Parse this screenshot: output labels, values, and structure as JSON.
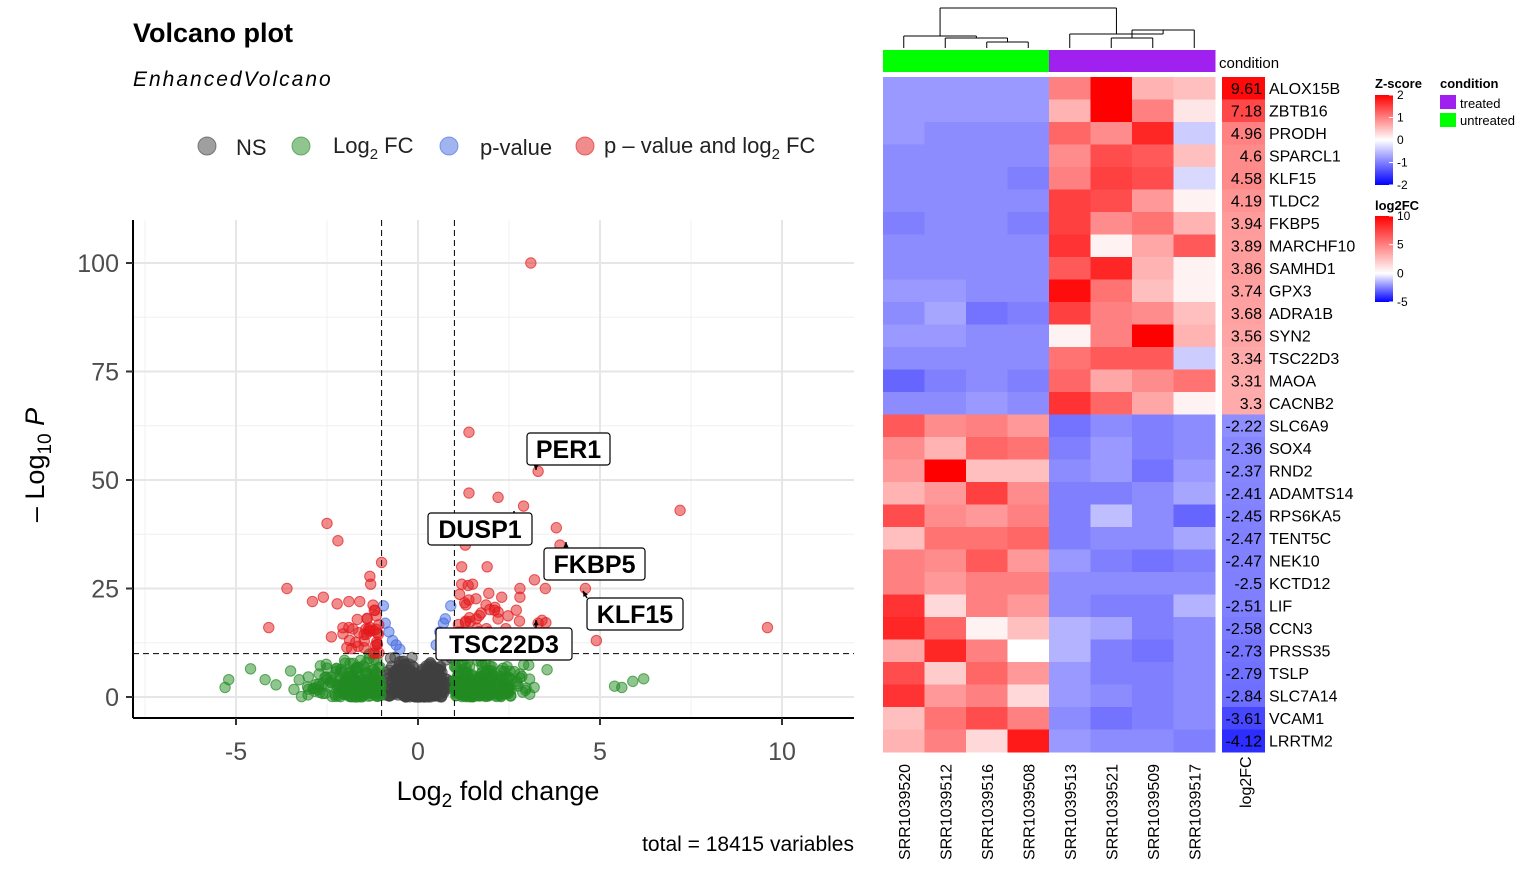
{
  "chart_data": [
    {
      "type": "scatter",
      "title": "Volcano plot",
      "subtitle": "EnhancedVolcano",
      "xlabel": "Log2 fold change",
      "ylabel": "-Log10 P",
      "caption": "total = 18415 variables",
      "xlim": [
        -7.8,
        12
      ],
      "ylim": [
        -5,
        110
      ],
      "x_ticks": [
        "-5",
        "0",
        "5",
        "10"
      ],
      "y_ticks": [
        "0",
        "25",
        "50",
        "75",
        "100"
      ],
      "x_tick_values": [
        -5,
        0,
        5,
        10
      ],
      "y_tick_values": [
        0,
        25,
        50,
        75,
        100
      ],
      "fc_cutoff": 1,
      "p_cutoff_log10": 10,
      "grid": true,
      "legend_position": "top",
      "legend": [
        {
          "name": "NS",
          "color": "#404040"
        },
        {
          "name": "Log2 FC",
          "color": "#228b22"
        },
        {
          "name": "p-value",
          "color": "#4169e1"
        },
        {
          "name": "p - value and log2 FC",
          "color": "#e31a1c"
        }
      ],
      "significant_points": [
        [
          3.1,
          100
        ],
        [
          1.4,
          61
        ],
        [
          7.2,
          43
        ],
        [
          9.6,
          16
        ],
        [
          1.4,
          47
        ],
        [
          2.2,
          46
        ],
        [
          2.9,
          44
        ],
        [
          3.3,
          52
        ],
        [
          3.9,
          35
        ],
        [
          4.6,
          25
        ],
        [
          3.8,
          39
        ],
        [
          2.8,
          23
        ],
        [
          3.2,
          27
        ],
        [
          4.9,
          13
        ],
        [
          -2.5,
          40
        ],
        [
          -2.2,
          36
        ],
        [
          -3.6,
          25
        ],
        [
          -2.6,
          23
        ],
        [
          -1,
          31
        ],
        [
          -1.3,
          26
        ],
        [
          -4.1,
          16
        ],
        [
          1.3,
          35
        ],
        [
          1.2,
          30
        ],
        [
          1.2,
          26
        ],
        [
          1.5,
          26
        ],
        [
          1.9,
          30
        ],
        [
          2.3,
          23
        ],
        [
          2.8,
          25
        ],
        [
          3.5,
          25
        ],
        [
          2.7,
          20
        ],
        [
          2.1,
          20
        ],
        [
          3.3,
          17
        ],
        [
          2.7,
          14
        ],
        [
          1.6,
          18
        ],
        [
          2.2,
          18
        ],
        [
          -1.2,
          20
        ],
        [
          -1.4,
          18
        ],
        [
          -2.9,
          22
        ],
        [
          -1.9,
          16
        ],
        [
          -1.6,
          22
        ],
        [
          -1.9,
          22
        ]
      ],
      "labels": [
        {
          "gene": "PER1",
          "x": 3.3,
          "y": 52
        },
        {
          "gene": "DUSP1",
          "x": 2.7,
          "y": 43
        },
        {
          "gene": "FKBP5",
          "x": 4.3,
          "y": 35
        },
        {
          "gene": "KLF15",
          "x": 4.6,
          "y": 25
        },
        {
          "gene": "TSC22D3",
          "x": 3.2,
          "y": 17
        }
      ]
    },
    {
      "type": "heatmap",
      "samples": [
        "SRR1039520",
        "SRR1039512",
        "SRR1039516",
        "SRR1039508",
        "SRR1039513",
        "SRR1039521",
        "SRR1039509",
        "SRR1039517"
      ],
      "condition": [
        "untreated",
        "untreated",
        "untreated",
        "untreated",
        "treated",
        "treated",
        "treated",
        "treated"
      ],
      "condition_label": "condition",
      "condition_colors": {
        "treated": "#a020f0",
        "untreated": "#00ff00"
      },
      "genes": [
        "ALOX15B",
        "ZBTB16",
        "PRODH",
        "SPARCL1",
        "KLF15",
        "TLDC2",
        "FKBP5",
        "MARCHF10",
        "SAMHD1",
        "GPX3",
        "ADRA1B",
        "SYN2",
        "TSC22D3",
        "MAOA",
        "CACNB2",
        "SLC6A9",
        "SOX4",
        "RND2",
        "ADAMTS14",
        "RPS6KA5",
        "TENT5C",
        "NEK10",
        "KCTD12",
        "LIF",
        "CCN3",
        "PRSS35",
        "TSLP",
        "SLC7A14",
        "VCAM1",
        "LRRTM2"
      ],
      "log2fc": [
        "9.61",
        "7.18",
        "4.96",
        "4.6",
        "4.58",
        "4.19",
        "3.94",
        "3.89",
        "3.86",
        "3.74",
        "3.68",
        "3.56",
        "3.34",
        "3.31",
        "3.3",
        "-2.22",
        "-2.36",
        "-2.37",
        "-2.41",
        "-2.45",
        "-2.47",
        "-2.47",
        "-2.5",
        "-2.51",
        "-2.58",
        "-2.73",
        "-2.79",
        "-2.84",
        "-3.61",
        "-4.12"
      ],
      "log2fc_column_label": "log2FC",
      "zscores": [
        [
          -0.8,
          -0.8,
          -0.8,
          -0.8,
          1.0,
          2.0,
          0.6,
          0.5
        ],
        [
          -0.8,
          -0.8,
          -0.8,
          -0.8,
          0.6,
          2.0,
          1.0,
          0.2
        ],
        [
          -0.8,
          -0.9,
          -0.9,
          -0.9,
          1.2,
          0.9,
          1.7,
          -0.4
        ],
        [
          -0.9,
          -0.9,
          -0.9,
          -0.9,
          0.9,
          1.4,
          1.3,
          0.5
        ],
        [
          -0.9,
          -0.9,
          -0.9,
          -1.0,
          1.0,
          1.5,
          1.4,
          -0.3
        ],
        [
          -0.9,
          -0.9,
          -0.9,
          -0.9,
          1.5,
          1.4,
          0.8,
          0.1
        ],
        [
          -1.0,
          -0.9,
          -0.9,
          -1.0,
          1.5,
          0.9,
          1.1,
          0.6
        ],
        [
          -0.9,
          -0.9,
          -0.9,
          -0.9,
          1.6,
          0.1,
          0.7,
          1.3
        ],
        [
          -0.9,
          -0.9,
          -0.9,
          -0.9,
          1.3,
          1.7,
          0.6,
          0.1
        ],
        [
          -0.8,
          -0.8,
          -0.9,
          -0.9,
          1.9,
          1.1,
          0.5,
          0.1
        ],
        [
          -0.9,
          -0.7,
          -1.1,
          -1.0,
          1.5,
          1.0,
          0.9,
          0.5
        ],
        [
          -0.8,
          -0.8,
          -0.9,
          -0.9,
          0.1,
          1.0,
          2.0,
          0.6
        ],
        [
          -0.9,
          -0.9,
          -0.9,
          -0.9,
          1.1,
          1.3,
          1.3,
          -0.4
        ],
        [
          -1.2,
          -1.0,
          -0.9,
          -1.0,
          1.2,
          0.7,
          0.9,
          1.1
        ],
        [
          -0.9,
          -0.9,
          -0.8,
          -0.9,
          1.6,
          1.2,
          0.7,
          0.1
        ],
        [
          1.3,
          0.9,
          1.0,
          0.8,
          -1.1,
          -0.9,
          -1.0,
          -0.9
        ],
        [
          0.9,
          0.6,
          1.2,
          1.1,
          -1.0,
          -0.8,
          -1.0,
          -0.9
        ],
        [
          0.8,
          2.0,
          0.5,
          0.5,
          -0.9,
          -0.8,
          -1.1,
          -0.8
        ],
        [
          0.6,
          0.8,
          1.5,
          0.9,
          -1.0,
          -1.0,
          -0.9,
          -0.7
        ],
        [
          1.4,
          0.9,
          0.8,
          1.0,
          -1.0,
          -0.5,
          -0.9,
          -1.2
        ],
        [
          0.5,
          1.1,
          1.1,
          1.2,
          -1.0,
          -0.9,
          -0.9,
          -0.7
        ],
        [
          1.0,
          0.9,
          1.3,
          0.8,
          -0.8,
          -1.0,
          -1.1,
          -1.0
        ],
        [
          1.0,
          0.8,
          1.0,
          1.0,
          -0.9,
          -0.9,
          -0.9,
          -0.9
        ],
        [
          1.6,
          0.3,
          1.0,
          0.8,
          -0.9,
          -1.0,
          -1.0,
          -0.6
        ],
        [
          1.7,
          1.2,
          0.1,
          0.5,
          -0.6,
          -0.7,
          -1.0,
          -0.9
        ],
        [
          0.7,
          1.7,
          1.0,
          0.0,
          -0.6,
          -1.0,
          -1.1,
          -0.9
        ],
        [
          1.4,
          0.4,
          1.2,
          0.8,
          -0.8,
          -1.0,
          -1.0,
          -0.9
        ],
        [
          1.6,
          0.8,
          1.0,
          0.3,
          -0.8,
          -0.9,
          -1.0,
          -0.9
        ],
        [
          0.5,
          1.1,
          1.4,
          1.0,
          -0.9,
          -1.1,
          -1.0,
          -0.9
        ],
        [
          0.6,
          1.0,
          0.3,
          1.8,
          -0.8,
          -0.9,
          -0.9,
          -1.0
        ]
      ],
      "zscore_legend": {
        "title": "Z-score",
        "ticks": [
          "2",
          "1",
          "0",
          "-1",
          "-2"
        ],
        "tick_values": [
          2,
          1,
          0,
          -1,
          -2
        ]
      },
      "log2fc_legend": {
        "title": "log2FC",
        "ticks": [
          "10",
          "5",
          "0",
          "-5"
        ],
        "tick_values": [
          10,
          5,
          0,
          -5
        ]
      },
      "condition_legend": {
        "title": "condition",
        "items": [
          "treated",
          "untreated"
        ]
      }
    }
  ]
}
